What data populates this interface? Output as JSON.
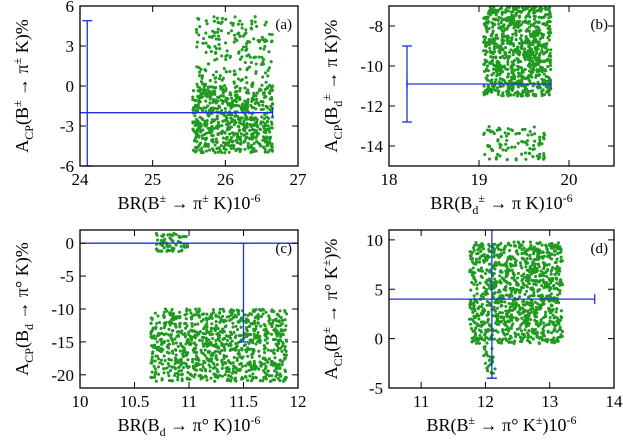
{
  "colors": {
    "points": "#1e9a1e",
    "bar": "#2030e0",
    "axis": "#000000"
  },
  "chart_data": [
    {
      "type": "scatter",
      "panel": "(a)",
      "xlabel": {
        "main": "BR(B",
        "sup": "±",
        "arrow": " → π",
        "sup2": "±",
        "tail": " K)10",
        "sup3": "-6"
      },
      "ylabel": {
        "main": "A",
        "sub": "CP",
        "open": "(B",
        "sup": "±",
        "arrow": " → π",
        "sup2": "±",
        "tail": " K)%"
      },
      "xlim": [
        24,
        27
      ],
      "ylim": [
        -6,
        6
      ],
      "xticks": [
        24,
        25,
        26,
        27
      ],
      "xtick_labels": [
        "24",
        "25",
        "26",
        "27"
      ],
      "yticks": [
        -6,
        -3,
        0,
        3,
        6
      ],
      "ytick_labels": [
        "-6",
        "-3",
        "0",
        "3",
        "6"
      ],
      "clusters": [
        {
          "xmin": 25.55,
          "xmax": 26.65,
          "ymin": -5.0,
          "ymax": 0.0,
          "n": 650
        },
        {
          "xmin": 25.6,
          "xmax": 26.65,
          "ymin": 0.0,
          "ymax": 5.2,
          "n": 190
        }
      ],
      "hline": {
        "y": -2.0,
        "x0": 24.0,
        "x1": 26.65
      },
      "vline": {
        "x": 24.1,
        "y0": -6.0,
        "y1": 4.9
      }
    },
    {
      "type": "scatter",
      "panel": "(b)",
      "xlabel": {
        "main": "BR(B",
        "sub": "d",
        "arrow": " → π K",
        "sup": "±",
        "tail": ")10",
        "sup3": "-6"
      },
      "ylabel": {
        "main": "A",
        "sub": "CP",
        "open": "(B",
        "sub2": "d",
        "arrow": " → π K",
        "sup": "±",
        "tail": ")%"
      },
      "xlim": [
        18,
        20.5
      ],
      "ylim": [
        -15,
        -7
      ],
      "xticks": [
        18,
        19,
        20
      ],
      "xtick_labels": [
        "18",
        "19",
        "20"
      ],
      "yticks": [
        -14,
        -12,
        -10,
        -8
      ],
      "ytick_labels": [
        "-14",
        "-12",
        "-10",
        "-8"
      ],
      "clusters": [
        {
          "xmin": 19.05,
          "xmax": 19.8,
          "ymin": -11.5,
          "ymax": -7.0,
          "n": 850
        },
        {
          "xmin": 19.05,
          "xmax": 19.75,
          "ymin": -14.7,
          "ymax": -13.0,
          "n": 90
        }
      ],
      "hline": {
        "y": -10.9,
        "x0": 18.2,
        "x1": 19.8
      },
      "vline": {
        "x": 18.2,
        "y0": -12.8,
        "y1": -9.0
      }
    },
    {
      "type": "scatter",
      "panel": "(c)",
      "xlabel": {
        "main": "BR(B",
        "sub": "d",
        "arrow": " → π° K)10",
        "sup3": "-6"
      },
      "ylabel": {
        "main": "A",
        "sub": "CP",
        "open": "(B",
        "sub2": "d",
        "arrow": " → π° K)%"
      },
      "xlim": [
        10,
        12
      ],
      "ylim": [
        -22,
        2
      ],
      "xticks": [
        10,
        10.5,
        11,
        11.5,
        12
      ],
      "xtick_labels": [
        "10",
        "10.5",
        "11",
        "11.5",
        "12"
      ],
      "yticks": [
        -20,
        -15,
        -10,
        -5,
        0
      ],
      "ytick_labels": [
        "-20",
        "-15",
        "-10",
        "-5",
        "0"
      ],
      "clusters": [
        {
          "xmin": 10.65,
          "xmax": 11.9,
          "ymin": -21.0,
          "ymax": -10.0,
          "n": 950
        },
        {
          "xmin": 10.7,
          "xmax": 11.0,
          "ymin": -1.3,
          "ymax": 1.5,
          "n": 70
        }
      ],
      "hline": {
        "y": 0.0,
        "x0": 10.0,
        "x1": 12.0
      },
      "vline": {
        "x": 11.5,
        "y0": -15.0,
        "y1": 0.0
      }
    },
    {
      "type": "scatter",
      "panel": "(d)",
      "xlabel": {
        "main": "BR(B",
        "sup": "±",
        "arrow": " → π° K",
        "sup2": "±",
        "tail": ")10",
        "sup3": "-6"
      },
      "ylabel": {
        "main": "A",
        "sub": "CP",
        "open": "(B",
        "sup": "±",
        "arrow": " → π° K",
        "sup2": "±",
        "tail": ")%"
      },
      "xlim": [
        10.5,
        14
      ],
      "ylim": [
        -5,
        11
      ],
      "xticks": [
        11,
        12,
        13,
        14
      ],
      "xtick_labels": [
        "11",
        "12",
        "13",
        "14"
      ],
      "yticks": [
        -5,
        0,
        5,
        10
      ],
      "ytick_labels": [
        "-5",
        "0",
        "5",
        "10"
      ],
      "clusters": [
        {
          "xmin": 11.75,
          "xmax": 13.2,
          "ymin": -0.5,
          "ymax": 9.8,
          "n": 1050
        },
        {
          "xmin": 11.95,
          "xmax": 12.15,
          "ymin": -3.5,
          "ymax": -0.5,
          "n": 25
        }
      ],
      "hline": {
        "y": 4.0,
        "x0": 10.5,
        "x1": 13.7
      },
      "vline": {
        "x": 12.1,
        "y0": -4.0,
        "y1": 11.0
      }
    }
  ]
}
